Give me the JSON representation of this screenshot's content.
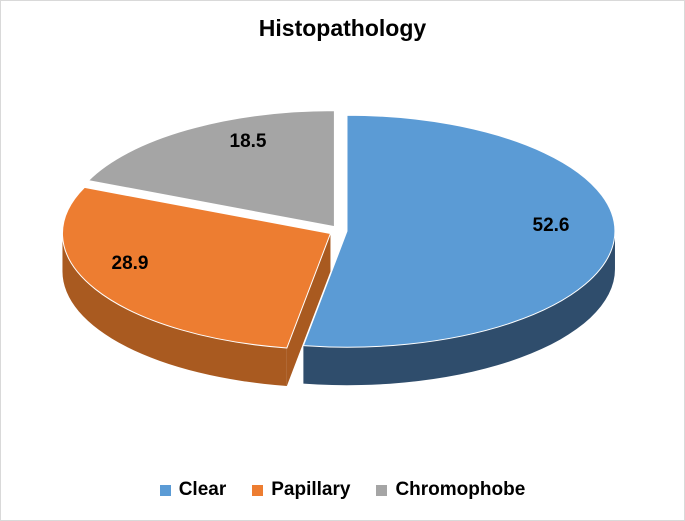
{
  "chart_data": {
    "type": "pie",
    "title": "Histopathology",
    "categories": [
      "Clear",
      "Papillary",
      "Chromophobe"
    ],
    "values": [
      52.6,
      28.9,
      18.5
    ],
    "colors": [
      "#5b9bd5",
      "#ed7d31",
      "#a5a5a5"
    ],
    "side_colors": [
      "#2f4d6c",
      "#a95a20",
      "#7a7a7a"
    ],
    "style": "3D exploded pie",
    "legend_position": "bottom",
    "data_labels": [
      "52.6",
      "28.9",
      "18.5"
    ]
  }
}
